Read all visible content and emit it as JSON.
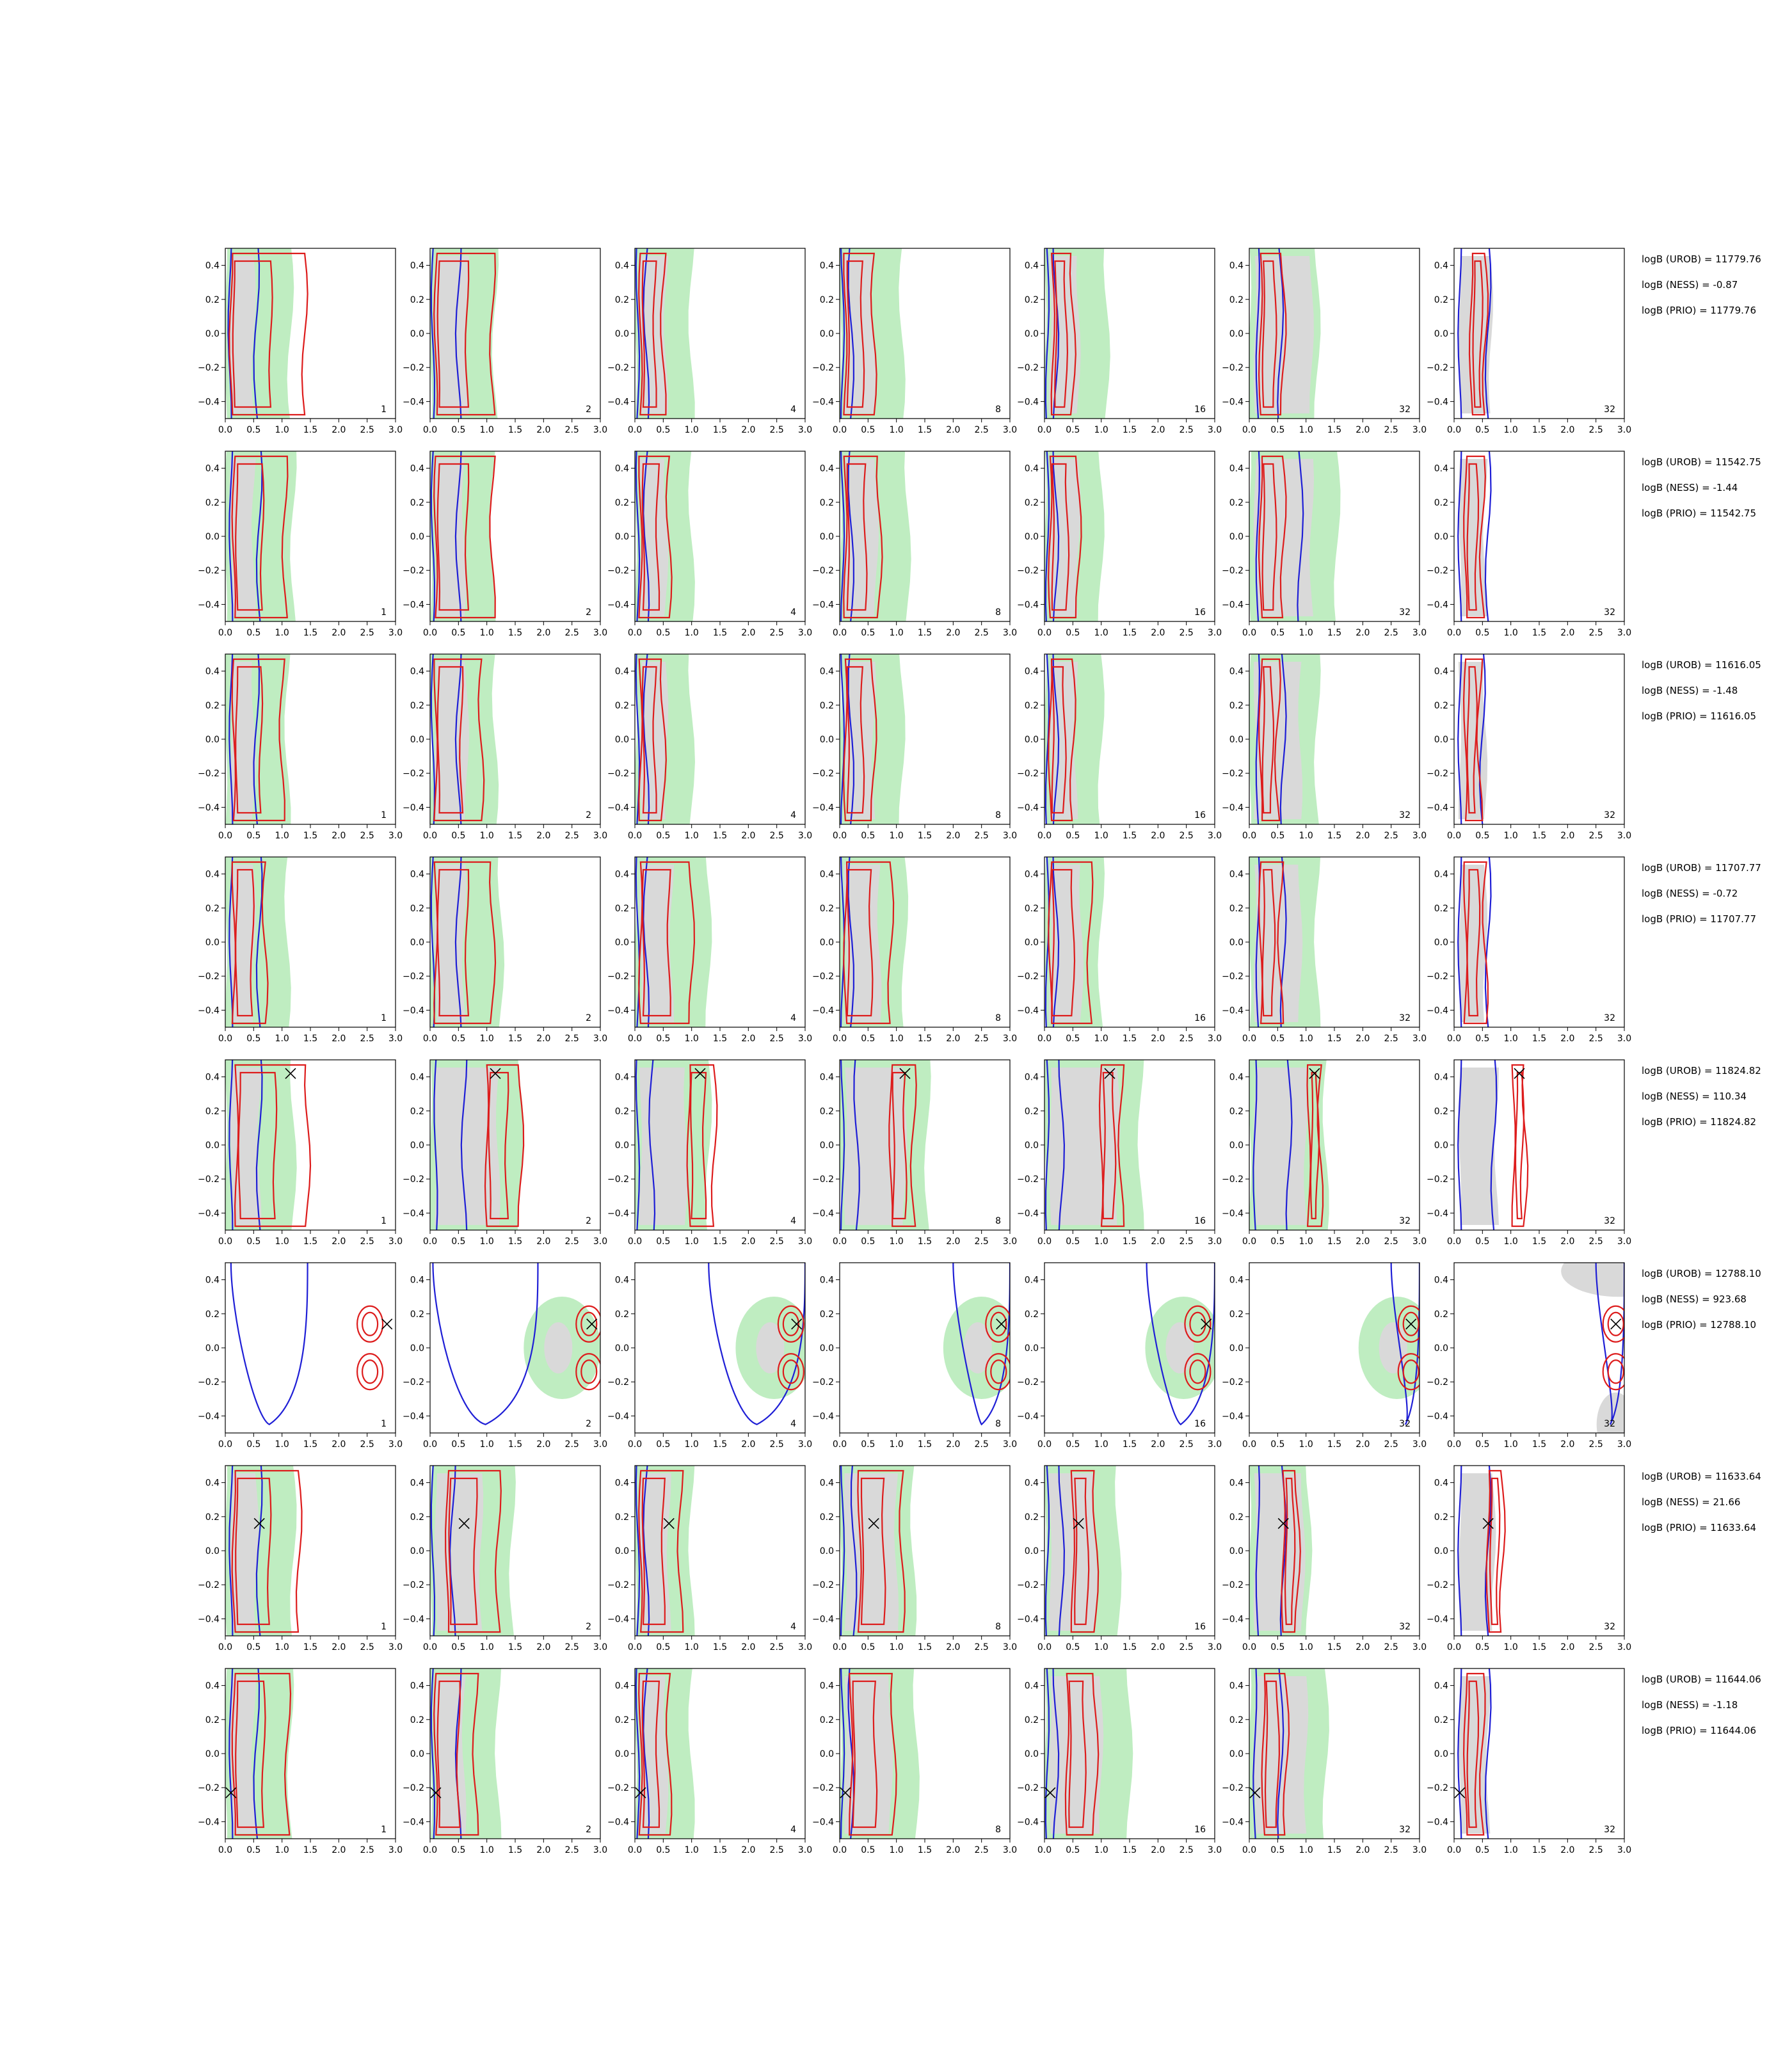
{
  "chart_data": {
    "type": "contour",
    "xlim": [
      0.0,
      3.0
    ],
    "ylim": [
      -0.5,
      0.5
    ],
    "x_ticks": [
      "0.0",
      "0.5",
      "1.0",
      "1.5",
      "2.0",
      "2.5",
      "3.0"
    ],
    "y_ticks": [
      "0.4",
      "0.2",
      "0.0",
      "−0.2",
      "−0.4"
    ],
    "panel_labels": [
      "1",
      "2",
      "4",
      "8",
      "16",
      "32",
      "32"
    ],
    "colors": {
      "blue": "#1f1fd6",
      "red": "#dd1c1c",
      "green_fill": "#bfedc1",
      "grey_fill": "#d9d9d9",
      "marker": "#000000"
    },
    "rows": [
      {
        "marker": null,
        "annotations": [
          "logB (UROB) = 11779.76",
          "logB (NESS) = -0.87",
          "logB (PRIO) = 11779.76"
        ],
        "panels": [
          {
            "green": 1.15,
            "grey": 0.5,
            "blue": [
              0.08,
              0.55
            ],
            "red": [
              0.1,
              1.4
            ]
          },
          {
            "green": 1.15,
            "grey": 0.65,
            "blue": [
              0.05,
              0.5
            ],
            "red": [
              0.1,
              1.1
            ]
          },
          {
            "green": 1.0,
            "grey": 0.55,
            "blue": [
              0.05,
              0.2
            ],
            "red": [
              0.1,
              0.5
            ]
          },
          {
            "green": 1.1,
            "grey": 0.6,
            "blue": [
              0.05,
              0.2
            ],
            "red": [
              0.1,
              0.6
            ]
          },
          {
            "green": 1.1,
            "grey": 0.6,
            "blue": [
              0.05,
              0.2
            ],
            "red": [
              0.15,
              0.5
            ]
          },
          {
            "green": 1.2,
            "grey": 1.1,
            "blue": [
              0.15,
              0.55
            ],
            "red": [
              0.2,
              0.6
            ]
          },
          {
            "green": 0.0,
            "grey": 0.65,
            "blue": [
              0.1,
              0.6
            ],
            "red": [
              0.3,
              0.55
            ]
          }
        ]
      },
      {
        "marker": null,
        "annotations": [
          "logB (UROB) = 11542.75",
          "logB (NESS) = -1.44",
          "logB (PRIO) = 11542.75"
        ],
        "panels": [
          {
            "green": 1.2,
            "grey": 0.5,
            "blue": [
              0.1,
              0.6
            ],
            "red": [
              0.15,
              1.05
            ]
          },
          {
            "green": 1.1,
            "grey": 0.6,
            "blue": [
              0.05,
              0.5
            ],
            "red": [
              0.1,
              1.1
            ]
          },
          {
            "green": 1.0,
            "grey": 0.55,
            "blue": [
              0.05,
              0.2
            ],
            "red": [
              0.1,
              0.6
            ]
          },
          {
            "green": 1.2,
            "grey": 0.65,
            "blue": [
              0.05,
              0.2
            ],
            "red": [
              0.1,
              0.7
            ]
          },
          {
            "green": 1.0,
            "grey": 0.6,
            "blue": [
              0.05,
              0.2
            ],
            "red": [
              0.1,
              0.6
            ]
          },
          {
            "green": 1.55,
            "grey": 1.1,
            "blue": [
              0.15,
              0.9
            ],
            "red": [
              0.2,
              0.6
            ]
          },
          {
            "green": 0.0,
            "grey": 0.55,
            "blue": [
              0.1,
              0.6
            ],
            "red": [
              0.2,
              0.5
            ]
          }
        ]
      },
      {
        "marker": null,
        "annotations": [
          "logB (UROB) = 11616.05",
          "logB (NESS) = -1.48",
          "logB (PRIO) = 11616.05"
        ],
        "panels": [
          {
            "green": 1.1,
            "grey": 0.5,
            "blue": [
              0.1,
              0.55
            ],
            "red": [
              0.15,
              1.0
            ]
          },
          {
            "green": 1.15,
            "grey": 0.65,
            "blue": [
              0.05,
              0.5
            ],
            "red": [
              0.1,
              0.9
            ]
          },
          {
            "green": 1.0,
            "grey": 0.55,
            "blue": [
              0.05,
              0.2
            ],
            "red": [
              0.1,
              0.5
            ]
          },
          {
            "green": 1.1,
            "grey": 0.6,
            "blue": [
              0.05,
              0.2
            ],
            "red": [
              0.1,
              0.6
            ]
          },
          {
            "green": 1.0,
            "grey": 0.55,
            "blue": [
              0.05,
              0.2
            ],
            "red": [
              0.1,
              0.5
            ]
          },
          {
            "green": 1.2,
            "grey": 0.9,
            "blue": [
              0.15,
              0.6
            ],
            "red": [
              0.2,
              0.5
            ]
          },
          {
            "green": 0.0,
            "grey": 0.55,
            "blue": [
              0.1,
              0.5
            ],
            "red": [
              0.2,
              0.45
            ]
          }
        ]
      },
      {
        "marker": null,
        "annotations": [
          "logB (UROB) = 11707.77",
          "logB (NESS) = -0.72",
          "logB (PRIO) = 11707.77"
        ],
        "panels": [
          {
            "green": 1.1,
            "grey": 0.5,
            "blue": [
              0.1,
              0.6
            ],
            "red": [
              0.15,
              0.7
            ]
          },
          {
            "green": 1.25,
            "grey": 0.6,
            "blue": [
              0.05,
              0.5
            ],
            "red": [
              0.1,
              1.1
            ]
          },
          {
            "green": 1.3,
            "grey": 0.65,
            "blue": [
              0.05,
              0.2
            ],
            "red": [
              0.1,
              1.0
            ]
          },
          {
            "green": 1.15,
            "grey": 0.7,
            "blue": [
              0.05,
              0.2
            ],
            "red": [
              0.1,
              0.9
            ]
          },
          {
            "green": 1.0,
            "grey": 0.65,
            "blue": [
              0.05,
              0.2
            ],
            "red": [
              0.1,
              0.8
            ]
          },
          {
            "green": 1.2,
            "grey": 0.9,
            "blue": [
              0.15,
              0.6
            ],
            "red": [
              0.2,
              0.55
            ]
          },
          {
            "green": 0.0,
            "grey": 0.55,
            "blue": [
              0.1,
              0.6
            ],
            "red": [
              0.2,
              0.55
            ]
          }
        ]
      },
      {
        "marker": {
          "x": 1.15,
          "y": 0.42
        },
        "annotations": [
          "logB (UROB) = 11824.82",
          "logB (NESS) = 110.34",
          "logB (PRIO) = 11824.82"
        ],
        "panels": [
          {
            "green": 1.2,
            "grey": 0.6,
            "blue": [
              0.1,
              0.6
            ],
            "red": [
              0.2,
              1.45
            ]
          },
          {
            "green": 1.6,
            "grey": 1.2,
            "blue": [
              0.1,
              0.6
            ],
            "red": [
              1.0,
              1.6
            ]
          },
          {
            "green": 1.3,
            "grey": 0.9,
            "blue": [
              0.05,
              0.3
            ],
            "red": [
              0.95,
              1.4
            ]
          },
          {
            "green": 1.55,
            "grey": 1.15,
            "blue": [
              0.05,
              0.3
            ],
            "red": [
              0.9,
              1.3
            ]
          },
          {
            "green": 1.7,
            "grey": 1.3,
            "blue": [
              0.05,
              0.3
            ],
            "red": [
              1.0,
              1.35
            ]
          },
          {
            "green": 1.35,
            "grey": 1.0,
            "blue": [
              0.1,
              0.7
            ],
            "red": [
              1.05,
              1.25
            ]
          },
          {
            "green": 0.0,
            "grey": 0.75,
            "blue": [
              0.1,
              0.7
            ],
            "red": [
              1.05,
              1.25
            ]
          }
        ]
      },
      {
        "marker": {
          "x": 2.85,
          "y": 0.14
        },
        "annotations": [
          "logB (UROB) = 12788.10",
          "logB (NESS) = 923.68",
          "logB (PRIO) = 12788.10"
        ],
        "panels": [
          {
            "green": 0.0,
            "grey": 0.0,
            "blue": [
              0.1,
              1.45
            ],
            "red": [
              1.5,
              2.7
            ]
          },
          {
            "green": 0.0,
            "grey": 0.0,
            "blue": [
              0.05,
              1.9
            ],
            "red": [
              2.2,
              2.95
            ]
          },
          {
            "green": 0.0,
            "grey": 0.0,
            "blue": [
              1.3,
              3.0
            ],
            "red": [
              2.5,
              2.9
            ]
          },
          {
            "green": 0.0,
            "grey": 0.0,
            "blue": [
              2.0,
              3.0
            ],
            "red": [
              2.55,
              2.95
            ]
          },
          {
            "green": 0.0,
            "grey": 0.0,
            "blue": [
              1.8,
              3.0
            ],
            "red": [
              2.55,
              2.85
            ]
          },
          {
            "green": 0.0,
            "grey": 0.0,
            "blue": [
              2.5,
              3.0
            ],
            "red": [
              2.7,
              3.0
            ]
          },
          {
            "green": 0.0,
            "grey": 0.0,
            "blue": [
              2.5,
              3.0
            ],
            "red": [
              2.7,
              3.0
            ]
          }
        ]
      },
      {
        "marker": {
          "x": 0.6,
          "y": 0.16
        },
        "annotations": [
          "logB (UROB) = 11633.64",
          "logB (NESS) = 21.66",
          "logB (PRIO) = 11633.64"
        ],
        "panels": [
          {
            "green": 1.2,
            "grey": 0.55,
            "blue": [
              0.1,
              0.6
            ],
            "red": [
              0.15,
              1.3
            ]
          },
          {
            "green": 1.45,
            "grey": 0.9,
            "blue": [
              0.05,
              0.4
            ],
            "red": [
              0.3,
              1.2
            ]
          },
          {
            "green": 1.0,
            "grey": 0.6,
            "blue": [
              0.05,
              0.2
            ],
            "red": [
              0.1,
              0.8
            ]
          },
          {
            "green": 1.3,
            "grey": 1.0,
            "blue": [
              0.05,
              0.25
            ],
            "red": [
              0.35,
              1.1
            ]
          },
          {
            "green": 1.3,
            "grey": 0.9,
            "blue": [
              0.05,
              0.3
            ],
            "red": [
              0.5,
              0.9
            ]
          },
          {
            "green": 1.05,
            "grey": 0.95,
            "blue": [
              0.15,
              0.6
            ],
            "red": [
              0.6,
              0.85
            ]
          },
          {
            "green": 0.0,
            "grey": 0.7,
            "blue": [
              0.1,
              0.6
            ],
            "red": [
              0.6,
              0.85
            ]
          }
        ]
      },
      {
        "marker": {
          "x": 0.1,
          "y": -0.23
        },
        "annotations": [
          "logB (UROB) = 11644.06",
          "logB (NESS) = -1.18",
          "logB (PRIO) = 11644.06"
        ],
        "panels": [
          {
            "green": 1.15,
            "grey": 0.5,
            "blue": [
              0.1,
              0.55
            ],
            "red": [
              0.15,
              1.1
            ]
          },
          {
            "green": 1.2,
            "grey": 0.6,
            "blue": [
              0.05,
              0.5
            ],
            "red": [
              0.1,
              0.8
            ]
          },
          {
            "green": 1.0,
            "grey": 0.55,
            "blue": [
              0.05,
              0.2
            ],
            "red": [
              0.1,
              0.6
            ]
          },
          {
            "green": 1.35,
            "grey": 0.9,
            "blue": [
              0.05,
              0.2
            ],
            "red": [
              0.2,
              0.95
            ]
          },
          {
            "green": 1.5,
            "grey": 1.0,
            "blue": [
              0.05,
              0.2
            ],
            "red": [
              0.4,
              0.9
            ]
          },
          {
            "green": 1.35,
            "grey": 1.0,
            "blue": [
              0.1,
              0.55
            ],
            "red": [
              0.25,
              0.65
            ]
          },
          {
            "green": 0.0,
            "grey": 0.6,
            "blue": [
              0.1,
              0.6
            ],
            "red": [
              0.2,
              0.5
            ]
          }
        ]
      }
    ]
  }
}
